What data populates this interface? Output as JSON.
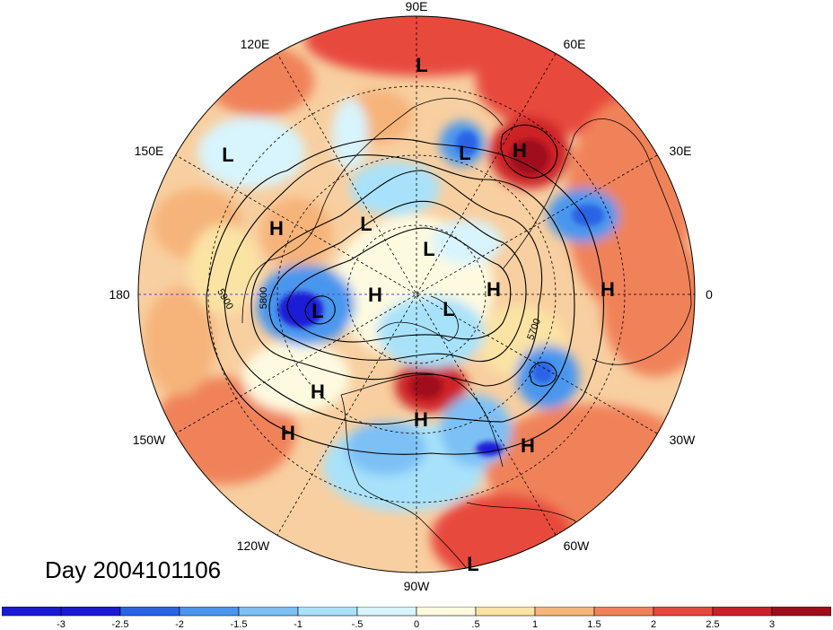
{
  "title": "Day 2004101106",
  "longitude_labels": [
    "90E",
    "60E",
    "30E",
    "0",
    "30W",
    "60W",
    "90W",
    "120W",
    "150W",
    "180",
    "150E",
    "120E"
  ],
  "contour_labels": [
    "5900",
    "5800",
    "5700"
  ],
  "pressure_centers": [
    {
      "type": "L",
      "label": "L"
    },
    {
      "type": "L",
      "label": "L"
    },
    {
      "type": "H",
      "label": "H"
    },
    {
      "type": "L",
      "label": "L"
    },
    {
      "type": "H",
      "label": "H"
    },
    {
      "type": "L",
      "label": "L"
    },
    {
      "type": "L",
      "label": "L"
    },
    {
      "type": "H",
      "label": "H"
    },
    {
      "type": "H",
      "label": "H"
    },
    {
      "type": "H",
      "label": "H"
    },
    {
      "type": "L",
      "label": "L"
    },
    {
      "type": "L",
      "label": "L"
    },
    {
      "type": "H",
      "label": "H"
    },
    {
      "type": "H",
      "label": "H"
    },
    {
      "type": "H",
      "label": "H"
    },
    {
      "type": "H",
      "label": "H"
    },
    {
      "type": "L",
      "label": "L"
    }
  ],
  "colorbar": {
    "ticks": [
      "-3",
      "-2.5",
      "-2",
      "-1.5",
      "-1",
      "-.5",
      "0",
      ".5",
      "1",
      "1.5",
      "2",
      "2.5",
      "3"
    ],
    "colors": [
      "#1a1ad6",
      "#2a64e6",
      "#4a96ee",
      "#7cc0f6",
      "#a8e2fa",
      "#d8f4fc",
      "#fefae0",
      "#fbe3a4",
      "#f6b47a",
      "#f0825a",
      "#e8483c",
      "#cc2028",
      "#a00c1c"
    ]
  }
}
